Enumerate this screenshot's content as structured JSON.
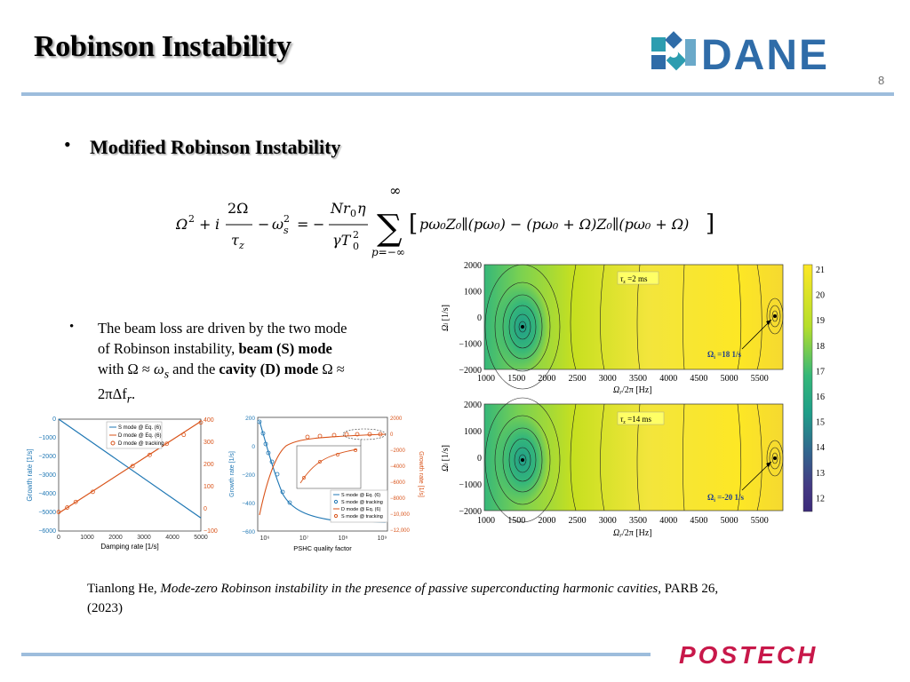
{
  "slide": {
    "title": "Robinson Instability",
    "page_number": "8",
    "logo_text": "DANE",
    "footer_logo_text": "POSTECH",
    "colors": {
      "line": "#9dbddc",
      "logo_blue": "#2f6ca8",
      "logo_teal": "#2c9db0",
      "postech": "#c8184a"
    }
  },
  "section": {
    "bullet": "•",
    "heading": "Modified Robinson Instability"
  },
  "equation": {
    "lhs_a": "Ω",
    "lhs_i": "i",
    "frac1_num": "2Ω",
    "frac1_den": "τ",
    "omega_s": "ω",
    "frac2_num": "Nr",
    "frac2_den": "γT",
    "sum_top": "∞",
    "sum_bottom": "p=−∞",
    "bracket_body": "pω₀Z₀∥(pω₀) − (pω₀ + Ω)Z₀∥(pω₀ + Ω)"
  },
  "paragraph": {
    "bullet": "•",
    "line1": "The beam loss are driven by the two mode",
    "line2_pre": "of Robinson instability, ",
    "line2_bold": "beam (S) mode",
    "line3_pre": "with Ω ≈ ",
    "line3_math": "ω",
    "line3_sub": "s",
    "line3_mid": " and the ",
    "line3_bold": "cavity (D) mode",
    "line3_end": " Ω ≈",
    "line4": "2πΔf",
    "line4_sub": "r",
    "line4_end": "."
  },
  "citation": {
    "author": "Tianlong He, ",
    "title_italic": "Mode-zero Robinson instability in the presence of passive superconducting harmonic cavities",
    "rest": ", PARB 26,",
    "year": "(2023)"
  },
  "fig_left": {
    "xlabel": "Damping rate [1/s]",
    "ylabel": "Growth rate [1/s]",
    "x_ticks": [
      "0",
      "1000",
      "2000",
      "3000",
      "4000",
      "5000"
    ],
    "y_left_ticks": [
      "0",
      "−1000",
      "−2000",
      "−3000",
      "−4000",
      "−5000",
      "−6000"
    ],
    "y_right_ticks": [
      "400",
      "300",
      "200",
      "100",
      "0",
      "−100"
    ],
    "legend": [
      "S mode @ Eq. (6)",
      "D mode @ Eq. (6)",
      "D mode @ tracking"
    ],
    "chart_data": {
      "type": "line",
      "x": [
        0,
        5000
      ],
      "series": [
        {
          "name": "S mode @ Eq. (6)",
          "values": [
            0,
            -5300
          ]
        },
        {
          "name": "D mode @ Eq. (6)",
          "values": [
            -20,
            390
          ]
        }
      ],
      "tracking_points": [
        [
          0,
          -15
        ],
        [
          300,
          5
        ],
        [
          600,
          30
        ],
        [
          1200,
          75
        ],
        [
          2600,
          190
        ],
        [
          3200,
          240
        ],
        [
          3800,
          290
        ],
        [
          4400,
          330
        ],
        [
          5000,
          385
        ]
      ]
    }
  },
  "fig_mid": {
    "xlabel": "PSHC quality factor",
    "ylabel_left": "Growth rate [1/s]",
    "ylabel_right": "Growth rate [1/s]",
    "x_ticks": [
      "10⁶",
      "10⁷",
      "10⁸",
      "10⁹"
    ],
    "y_left_ticks": [
      "200",
      "0",
      "−200",
      "−400",
      "−600"
    ],
    "y_right_ticks": [
      "2000",
      "0",
      "−2000",
      "−4000",
      "−6000",
      "−8000",
      "−10,000",
      "−12,000"
    ],
    "legend": [
      "S mode @ Eq. (6)",
      "S mode @ tracking",
      "D mode @ Eq. (6)",
      "S mode @ tracking"
    ]
  },
  "fig_right": {
    "colorbar_ticks": [
      "21",
      "20",
      "19",
      "18",
      "17",
      "16",
      "15",
      "14",
      "13",
      "12"
    ],
    "top": {
      "tau_label": "τ",
      "tau_sub": "z",
      "tau_value": " =2 ms",
      "omega_label": "Ω",
      "omega_sub": "i",
      "omega_value": " =18 1/s"
    },
    "bottom": {
      "tau_label": "τ",
      "tau_sub": "z",
      "tau_value": " =14 ms",
      "omega_label": "Ω",
      "omega_sub": "i",
      "omega_value": " =-20 1/s"
    },
    "x_ticks": [
      "1000",
      "1500",
      "2000",
      "2500",
      "3000",
      "3500",
      "4000",
      "4500",
      "5000",
      "5500"
    ],
    "y_ticks": [
      "2000",
      "1000",
      "0",
      "−1000",
      "−2000"
    ],
    "xlabel_main": "Ω",
    "xlabel_sub": "r",
    "xlabel_tail": "/2π [Hz]",
    "ylabel_main": "Ω",
    "ylabel_sub": "i",
    "ylabel_tail": " [1/s]"
  }
}
